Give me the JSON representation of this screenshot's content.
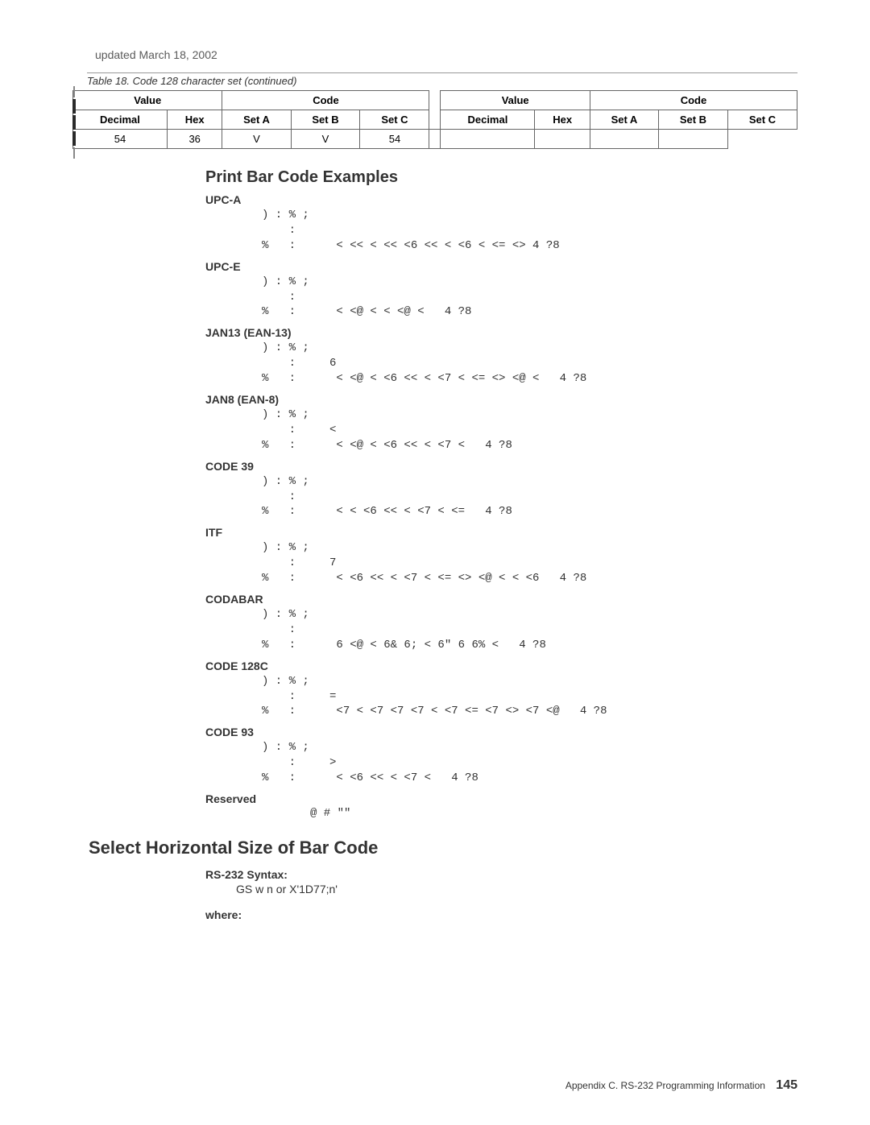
{
  "header": {
    "updated_text": "updated March 18, 2002",
    "table_caption": "Table 18. Code 128 character set  (continued)"
  },
  "table": {
    "group_headers": [
      "Value",
      "Code",
      "Value",
      "Code"
    ],
    "columns": [
      "Decimal",
      "Hex",
      "Set A",
      "Set B",
      "Set C",
      "Decimal",
      "Hex",
      "Set A",
      "Set B",
      "Set C"
    ],
    "row": {
      "decimal1": "54",
      "hex1": "36",
      "setA1": "V",
      "setB1": "V",
      "setC1": "54",
      "decimal2": "",
      "hex2": "",
      "setA2": "",
      "setB2": "",
      "setC2": ""
    }
  },
  "examples": {
    "title": "Print Bar Code Examples",
    "items": [
      {
        "name": "UPC-A",
        "lines": [
          ") : % ;",
          "    :",
          "%   :      < << < << <6 << < <6 < <= <> 4 ?8"
        ]
      },
      {
        "name": "UPC-E",
        "lines": [
          ") : % ;",
          "    :",
          "%   :      < <@ < < <@ <   4 ?8"
        ]
      },
      {
        "name": "JAN13 (EAN-13)",
        "lines": [
          ") : % ;",
          "    :     6",
          "%   :      < <@ < <6 << < <7 < <= <> <@ <   4 ?8"
        ]
      },
      {
        "name": "JAN8 (EAN-8)",
        "lines": [
          ") : % ;",
          "    :     <",
          "%   :      < <@ < <6 << < <7 <   4 ?8"
        ]
      },
      {
        "name": "CODE 39",
        "lines": [
          ") : % ;",
          "    :",
          "%   :      < < <6 << < <7 < <=   4 ?8"
        ]
      },
      {
        "name": "ITF",
        "lines": [
          ") : % ;",
          "    :     7",
          "%   :      < <6 << < <7 < <= <> <@ < < <6   4 ?8"
        ]
      },
      {
        "name": "CODABAR",
        "lines": [
          ") : % ;",
          "    :",
          "%   :      6 <@ < 6& 6; < 6\" 6 6% <   4 ?8"
        ]
      },
      {
        "name": "CODE 128C",
        "lines": [
          ") : % ;",
          "    :     =",
          "%   :      <7 < <7 <7 <7 < <7 <= <7 <> <7 <@   4 ?8"
        ]
      },
      {
        "name": "CODE 93",
        "lines": [
          ") : % ;",
          "    :     >",
          "%   :      < <6 << < <7 <   4 ?8"
        ]
      }
    ],
    "reserved_label": "Reserved",
    "reserved_line": "@ # \"\""
  },
  "horizontal": {
    "title": "Select Horizontal Size of Bar Code",
    "syntax_label": "RS-232 Syntax:",
    "syntax_value": "GS w n or X'1D77;n'",
    "where_label": "where:"
  },
  "footer": {
    "text": "Appendix C. RS-232 Programming Information",
    "page": "145"
  }
}
